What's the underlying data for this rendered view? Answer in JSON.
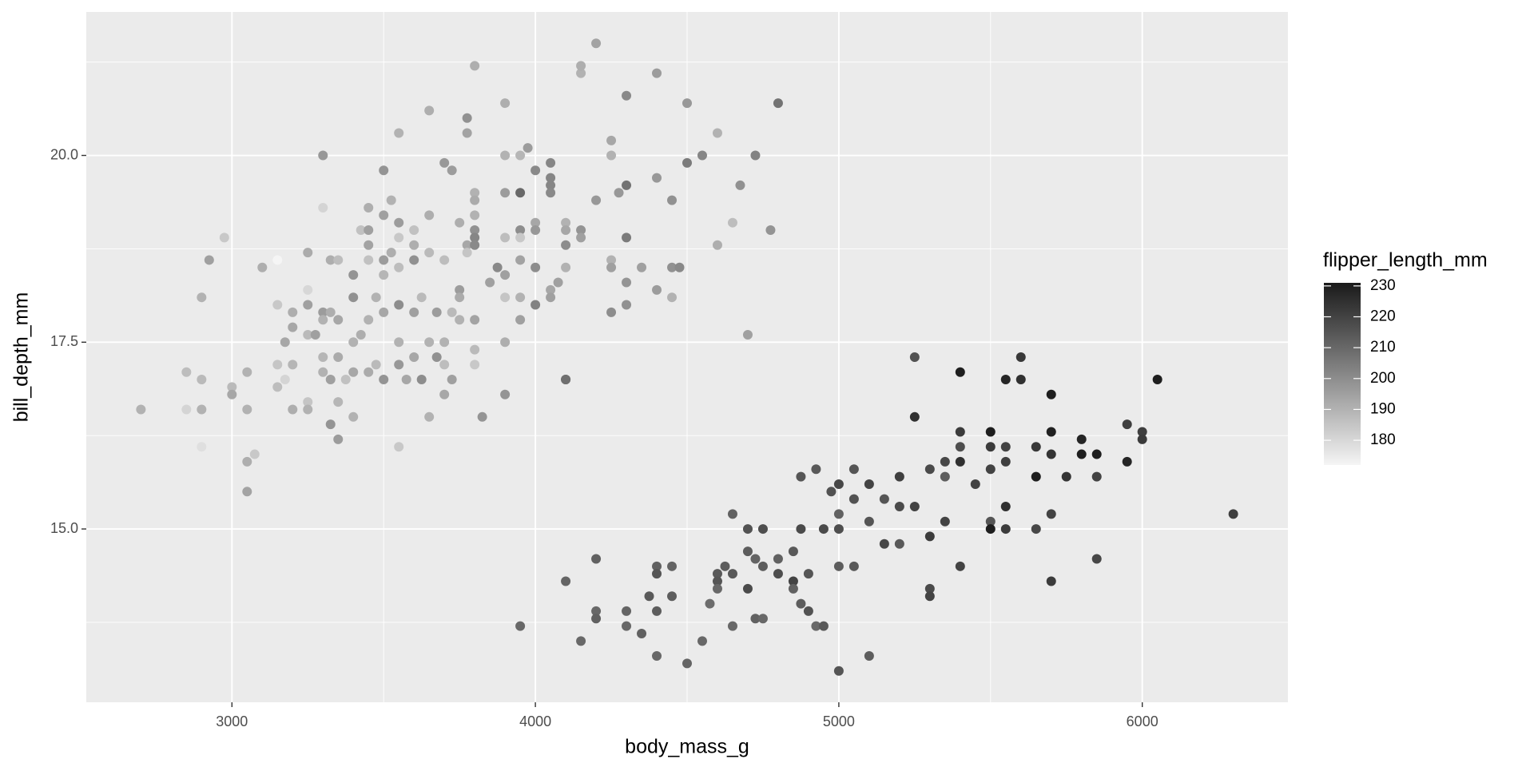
{
  "chart_data": {
    "type": "scatter",
    "x_label": "body_mass_g",
    "y_label": "bill_depth_mm",
    "xlim": [
      2520,
      6480
    ],
    "ylim": [
      12.68,
      21.92
    ],
    "xticks": [
      3000,
      4000,
      5000,
      6000
    ],
    "yticks": [
      {
        "value": 15,
        "label": "15.0"
      },
      {
        "value": 17.5,
        "label": "17.5"
      },
      {
        "value": 20,
        "label": "20.0"
      }
    ],
    "xminor": [
      3500,
      4500,
      5500
    ],
    "yminor": [
      13.75,
      16.25,
      18.75,
      21.25
    ],
    "grid": true,
    "legend_position": "right",
    "color_scale": {
      "title": "flipper_length_mm",
      "lim": [
        172,
        231
      ],
      "ticks": [
        180,
        190,
        200,
        210,
        220,
        230
      ],
      "low": "#f5f5f5",
      "high": "#1a1a1a"
    },
    "x": [
      2700,
      2850,
      2850,
      2900,
      2900,
      2900,
      2900,
      2925,
      2975,
      3000,
      3000,
      3050,
      3050,
      3050,
      3050,
      3075,
      3100,
      3150,
      3150,
      3150,
      3150,
      3175,
      3175,
      3200,
      3200,
      3200,
      3200,
      3250,
      3250,
      3250,
      3250,
      3250,
      3250,
      3275,
      3300,
      3300,
      3300,
      3300,
      3300,
      3300,
      3325,
      3325,
      3325,
      3325,
      3350,
      3350,
      3350,
      3350,
      3350,
      3375,
      3400,
      3400,
      3400,
      3400,
      3400,
      3425,
      3425,
      3450,
      3450,
      3450,
      3450,
      3450,
      3450,
      3475,
      3475,
      3500,
      3500,
      3500,
      3500,
      3500,
      3500,
      3525,
      3525,
      3550,
      3550,
      3550,
      3550,
      3550,
      3550,
      3550,
      3550,
      3575,
      3600,
      3600,
      3600,
      3600,
      3600,
      3625,
      3625,
      3650,
      3650,
      3650,
      3650,
      3650,
      3675,
      3675,
      3700,
      3700,
      3700,
      3700,
      3700,
      3725,
      3725,
      3725,
      3750,
      3750,
      3750,
      3750,
      3775,
      3775,
      3775,
      3775,
      3800,
      3800,
      3800,
      3800,
      3800,
      3800,
      3800,
      3800,
      3800,
      3800,
      3825,
      3850,
      3875,
      3900,
      3900,
      3900,
      3900,
      3900,
      3900,
      3900,
      3900,
      3950,
      3950,
      3950,
      3950,
      3950,
      3950,
      3950,
      3950,
      3975,
      4000,
      4000,
      4000,
      4000,
      4000,
      4050,
      4050,
      4050,
      4050,
      4050,
      4050,
      4075,
      4100,
      4100,
      4100,
      4100,
      4150,
      4150,
      4150,
      4150,
      4200,
      4200,
      4250,
      4250,
      4250,
      4250,
      4250,
      4275,
      4300,
      4300,
      4300,
      4300,
      4300,
      4350,
      4400,
      4400,
      4400,
      4450,
      4450,
      4450,
      4475,
      4500,
      4500,
      4550,
      4600,
      4600,
      4650,
      4675,
      4700,
      4725,
      4775,
      4800,
      4100,
      4100,
      4100,
      4150,
      4200,
      4200,
      4200,
      4300,
      4300,
      4350,
      4375,
      4400,
      4400,
      4400,
      4400,
      4450,
      4450,
      4500,
      4550,
      4575,
      4600,
      4600,
      4600,
      4625,
      4650,
      4650,
      4650,
      4700,
      4700,
      4700,
      4725,
      4725,
      4750,
      4750,
      4750,
      4800,
      4800,
      4850,
      4850,
      4850,
      4875,
      4875,
      4875,
      4900,
      4900,
      4925,
      4925,
      4950,
      4950,
      4975,
      5000,
      5000,
      5000,
      5000,
      5000,
      5050,
      5050,
      5050,
      5100,
      5100,
      5100,
      5150,
      5150,
      5200,
      5200,
      5200,
      5250,
      5250,
      5250,
      5300,
      5300,
      5300,
      5300,
      5350,
      5350,
      5350,
      5400,
      5400,
      5400,
      5400,
      5400,
      5450,
      5500,
      5500,
      5500,
      5500,
      5500,
      5550,
      5550,
      5550,
      5550,
      5550,
      5600,
      5600,
      5650,
      5650,
      5650,
      5700,
      5700,
      5700,
      5700,
      5700,
      5750,
      5800,
      5800,
      5850,
      5850,
      5850,
      5950,
      5950,
      6000,
      6000,
      6050,
      6300
    ],
    "values": [
      16.6,
      17.1,
      16.6,
      17.0,
      16.6,
      16.1,
      18.1,
      18.6,
      18.9,
      16.9,
      16.8,
      17.1,
      16.6,
      15.9,
      15.5,
      16.0,
      18.5,
      18.6,
      18.0,
      17.2,
      16.9,
      17.5,
      17.0,
      17.9,
      17.7,
      17.2,
      16.6,
      18.7,
      18.2,
      18.0,
      17.6,
      16.7,
      16.6,
      17.6,
      20.0,
      19.3,
      17.9,
      17.8,
      17.3,
      17.1,
      18.6,
      17.9,
      17.0,
      16.4,
      18.6,
      17.8,
      17.3,
      16.7,
      16.2,
      17.0,
      18.4,
      18.1,
      17.5,
      17.1,
      16.5,
      19.0,
      17.6,
      19.3,
      19.0,
      18.8,
      18.6,
      17.8,
      17.1,
      18.1,
      17.2,
      19.8,
      19.2,
      18.6,
      18.4,
      17.9,
      17.0,
      19.4,
      18.7,
      20.3,
      19.1,
      18.9,
      18.5,
      18.0,
      17.5,
      17.2,
      16.1,
      17.0,
      19.0,
      18.8,
      18.6,
      17.9,
      17.3,
      18.1,
      17.0,
      20.6,
      19.2,
      18.7,
      17.5,
      16.5,
      17.9,
      17.3,
      19.9,
      18.6,
      17.5,
      17.2,
      16.8,
      19.8,
      17.9,
      17.0,
      19.1,
      18.2,
      18.1,
      17.8,
      20.5,
      20.3,
      18.8,
      18.7,
      21.2,
      19.5,
      19.4,
      19.2,
      19.0,
      18.9,
      18.8,
      17.8,
      17.4,
      17.2,
      16.5,
      18.3,
      18.5,
      20.7,
      20.0,
      19.5,
      18.9,
      18.4,
      18.1,
      17.5,
      16.8,
      20.0,
      19.5,
      19.0,
      18.9,
      18.6,
      18.1,
      17.8,
      13.7,
      20.1,
      19.8,
      19.1,
      19.0,
      18.5,
      18.0,
      19.9,
      19.7,
      19.6,
      19.5,
      18.2,
      18.1,
      18.3,
      19.1,
      19.0,
      18.8,
      18.5,
      21.1,
      21.2,
      19.0,
      18.9,
      21.5,
      19.4,
      20.2,
      20.0,
      18.6,
      18.5,
      17.9,
      19.5,
      20.8,
      19.6,
      18.9,
      18.3,
      18.0,
      18.5,
      21.1,
      19.7,
      18.2,
      19.4,
      18.5,
      18.1,
      18.5,
      20.7,
      19.9,
      20.0,
      20.3,
      18.8,
      19.1,
      19.6,
      17.6,
      20.0,
      19.0,
      20.7,
      17.0,
      17.0,
      14.3,
      13.5,
      14.6,
      13.9,
      13.8,
      13.7,
      13.9,
      13.6,
      14.1,
      14.5,
      14.4,
      13.9,
      13.3,
      14.5,
      14.1,
      13.2,
      13.5,
      14.0,
      14.4,
      14.3,
      14.2,
      14.5,
      15.2,
      14.4,
      13.7,
      15.0,
      14.7,
      14.2,
      14.6,
      13.8,
      15.0,
      14.5,
      13.8,
      14.6,
      14.4,
      14.7,
      14.3,
      14.2,
      15.7,
      15.0,
      14.0,
      14.4,
      13.9,
      15.8,
      13.7,
      15.0,
      13.7,
      15.5,
      15.6,
      15.2,
      15.0,
      14.5,
      13.1,
      15.8,
      15.4,
      14.5,
      15.6,
      15.1,
      13.3,
      15.4,
      14.8,
      15.7,
      15.3,
      14.8,
      17.3,
      16.5,
      15.3,
      15.8,
      14.9,
      14.2,
      14.1,
      15.9,
      15.7,
      15.1,
      17.1,
      16.3,
      16.1,
      15.9,
      14.5,
      15.6,
      16.3,
      16.1,
      15.8,
      15.1,
      15.0,
      17.0,
      16.1,
      15.9,
      15.3,
      15.0,
      17.3,
      17.0,
      16.1,
      15.7,
      15.0,
      16.8,
      16.3,
      16.0,
      15.2,
      14.3,
      15.7,
      16.2,
      16.0,
      16.0,
      15.7,
      14.6,
      16.4,
      15.9,
      16.3,
      16.2,
      17.0,
      15.2
    ],
    "color_values": [
      190,
      187,
      181,
      188,
      190,
      178,
      190,
      195,
      184,
      188,
      193,
      190,
      190,
      191,
      194,
      184,
      191,
      172,
      184,
      185,
      187,
      193,
      181,
      191,
      193,
      189,
      191,
      192,
      180,
      195,
      188,
      185,
      190,
      195,
      197,
      181,
      196,
      190,
      189,
      190,
      191,
      191,
      195,
      198,
      187,
      193,
      192,
      189,
      196,
      186,
      198,
      199,
      190,
      193,
      190,
      186,
      191,
      191,
      195,
      194,
      186,
      190,
      192,
      190,
      188,
      198,
      195,
      196,
      189,
      193,
      198,
      190,
      191,
      190,
      196,
      184,
      187,
      200,
      190,
      197,
      184,
      193,
      186,
      191,
      199,
      195,
      193,
      188,
      200,
      191,
      191,
      188,
      190,
      190,
      196,
      199,
      197,
      187,
      190,
      187,
      193,
      196,
      188,
      195,
      191,
      196,
      192,
      190,
      199,
      194,
      193,
      185,
      191,
      190,
      192,
      190,
      199,
      202,
      201,
      194,
      188,
      184,
      198,
      195,
      201,
      191,
      190,
      196,
      187,
      195,
      185,
      191,
      198,
      189,
      210,
      200,
      184,
      194,
      190,
      195,
      210,
      196,
      201,
      193,
      197,
      200,
      203,
      202,
      202,
      202,
      201,
      193,
      195,
      195,
      190,
      193,
      200,
      190,
      190,
      191,
      198,
      195,
      194,
      197,
      193,
      190,
      190,
      195,
      200,
      197,
      201,
      207,
      205,
      198,
      199,
      195,
      196,
      197,
      196,
      199,
      199,
      190,
      201,
      197,
      205,
      202,
      190,
      191,
      187,
      199,
      195,
      203,
      198,
      207,
      210,
      208,
      211,
      210,
      212,
      210,
      212,
      210,
      211,
      212,
      214,
      212,
      215,
      213,
      210,
      211,
      213,
      211,
      210,
      209,
      214,
      215,
      210,
      213,
      212,
      214,
      210,
      216,
      213,
      218,
      211,
      212,
      217,
      213,
      210,
      212,
      217,
      214,
      220,
      212,
      215,
      218,
      213,
      215,
      216,
      214,
      210,
      218,
      214,
      216,
      219,
      212,
      217,
      213,
      215,
      215,
      216,
      214,
      220,
      215,
      213,
      215,
      219,
      221,
      218,
      214,
      216,
      225,
      220,
      218,
      222,
      218,
      220,
      219,
      213,
      220,
      230,
      222,
      217,
      225,
      220,
      220,
      230,
      222,
      220,
      215,
      230,
      228,
      220,
      221,
      225,
      222,
      223,
      225,
      223,
      230,
      219,
      230,
      229,
      224,
      220,
      222,
      224,
      228,
      230,
      230,
      220,
      219,
      221,
      228,
      221,
      222,
      230,
      221
    ]
  }
}
